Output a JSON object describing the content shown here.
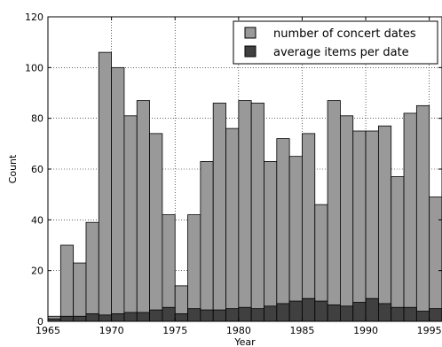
{
  "chart_data": {
    "type": "bar",
    "xlabel": "Year",
    "ylabel": "Count",
    "xlim": [
      1965,
      1996
    ],
    "ylim": [
      0,
      120
    ],
    "xticks": [
      1965,
      1970,
      1975,
      1980,
      1985,
      1990,
      1995
    ],
    "yticks": [
      0,
      20,
      40,
      60,
      80,
      100,
      120
    ],
    "grid": true,
    "legend_position": "top-right",
    "x": [
      1965,
      1966,
      1967,
      1968,
      1969,
      1970,
      1971,
      1972,
      1973,
      1974,
      1975,
      1976,
      1977,
      1978,
      1979,
      1980,
      1981,
      1982,
      1983,
      1984,
      1985,
      1986,
      1987,
      1988,
      1989,
      1990,
      1991,
      1992,
      1993,
      1994,
      1995
    ],
    "series": [
      {
        "name": "number of concert dates",
        "color": "#999999",
        "values": [
          2,
          30,
          23,
          39,
          106,
          100,
          81,
          87,
          74,
          42,
          14,
          42,
          63,
          86,
          76,
          87,
          86,
          63,
          72,
          65,
          74,
          46,
          87,
          81,
          75,
          75,
          77,
          57,
          82,
          85,
          49
        ]
      },
      {
        "name": "average items per date",
        "color": "#404040",
        "values": [
          1,
          2,
          2,
          3,
          2.5,
          3,
          3.5,
          3.5,
          4.5,
          5.5,
          3,
          5,
          4.5,
          4.5,
          5,
          5.5,
          5,
          6,
          7,
          8,
          9,
          8,
          6.5,
          6,
          7.5,
          9,
          7,
          5.5,
          5.5,
          4,
          5
        ]
      }
    ]
  }
}
